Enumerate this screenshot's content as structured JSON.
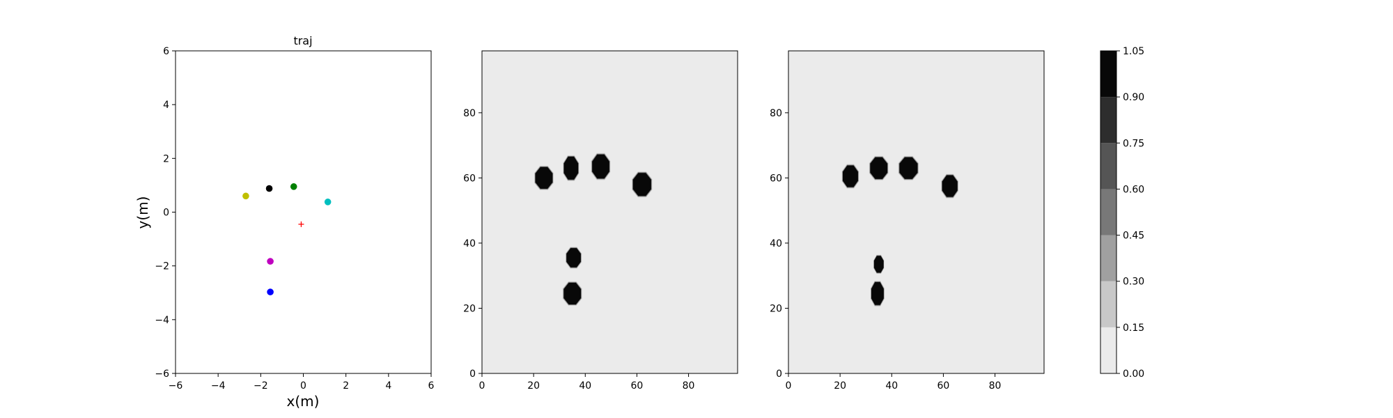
{
  "chart_data": [
    {
      "type": "scatter",
      "title": "traj",
      "xlabel": "x(m)",
      "ylabel": "y(m)",
      "xlim": [
        -6,
        6
      ],
      "ylim": [
        -6,
        6
      ],
      "xticks": [
        "−6",
        "−4",
        "−2",
        "0",
        "2",
        "4",
        "6"
      ],
      "yticks": [
        "−6",
        "−4",
        "−2",
        "0",
        "2",
        "4",
        "6"
      ],
      "points": [
        {
          "x": -2.7,
          "y": 0.6,
          "color": "#bfbf00",
          "marker": "circle"
        },
        {
          "x": -1.6,
          "y": 0.88,
          "color": "#000000",
          "marker": "circle"
        },
        {
          "x": -0.45,
          "y": 0.95,
          "color": "#008000",
          "marker": "circle"
        },
        {
          "x": 1.15,
          "y": 0.38,
          "color": "#00bfbf",
          "marker": "circle"
        },
        {
          "x": -1.55,
          "y": -1.83,
          "color": "#bf00bf",
          "marker": "circle"
        },
        {
          "x": -1.55,
          "y": -2.97,
          "color": "#0000ff",
          "marker": "circle"
        },
        {
          "x": -0.1,
          "y": -0.45,
          "color": "#ff0000",
          "marker": "plus"
        }
      ]
    },
    {
      "type": "heatmap",
      "title": "",
      "xlim": [
        0,
        99
      ],
      "ylim": [
        0,
        99
      ],
      "xticks": [
        "0",
        "20",
        "40",
        "60",
        "80"
      ],
      "yticks": [
        "0",
        "20",
        "40",
        "60",
        "80"
      ],
      "background_value": 0.05,
      "blobs": [
        {
          "cx": 24,
          "cy": 60,
          "rx": 3.6,
          "ry": 3.6,
          "value": 1.0
        },
        {
          "cx": 34.5,
          "cy": 63,
          "rx": 3.0,
          "ry": 3.8,
          "value": 1.0
        },
        {
          "cx": 46,
          "cy": 63.5,
          "rx": 3.6,
          "ry": 4.0,
          "value": 1.0
        },
        {
          "cx": 62,
          "cy": 58,
          "rx": 3.8,
          "ry": 3.8,
          "value": 1.0
        },
        {
          "cx": 35.5,
          "cy": 35.5,
          "rx": 3.0,
          "ry": 3.2,
          "value": 1.0
        },
        {
          "cx": 35,
          "cy": 24.5,
          "rx": 3.6,
          "ry": 3.6,
          "value": 1.0
        }
      ]
    },
    {
      "type": "heatmap",
      "title": "",
      "xlim": [
        0,
        99
      ],
      "ylim": [
        0,
        99
      ],
      "xticks": [
        "0",
        "20",
        "40",
        "60",
        "80"
      ],
      "yticks": [
        "0",
        "20",
        "40",
        "60",
        "80"
      ],
      "background_value": 0.05,
      "blobs": [
        {
          "cx": 24,
          "cy": 60.5,
          "rx": 3.2,
          "ry": 3.6,
          "value": 1.0
        },
        {
          "cx": 35,
          "cy": 63,
          "rx": 3.6,
          "ry": 3.6,
          "value": 1.0
        },
        {
          "cx": 46.5,
          "cy": 63,
          "rx": 3.8,
          "ry": 3.6,
          "value": 1.0
        },
        {
          "cx": 62.5,
          "cy": 57.5,
          "rx": 3.2,
          "ry": 3.6,
          "value": 1.0
        },
        {
          "cx": 35,
          "cy": 33.5,
          "rx": 2.0,
          "ry": 2.8,
          "value": 0.9
        },
        {
          "cx": 34.5,
          "cy": 24.5,
          "rx": 2.6,
          "ry": 3.8,
          "value": 0.95
        }
      ]
    },
    {
      "type": "colorbar",
      "levels": [
        0.0,
        0.15,
        0.3,
        0.45,
        0.6,
        0.75,
        0.9,
        1.05
      ],
      "ticks": [
        "0.00",
        "0.15",
        "0.30",
        "0.45",
        "0.60",
        "0.75",
        "0.90",
        "1.05"
      ],
      "colors": [
        "#ebebeb",
        "#c8c8c8",
        "#a0a0a0",
        "#787878",
        "#555555",
        "#2d2d2d",
        "#080808"
      ]
    }
  ]
}
